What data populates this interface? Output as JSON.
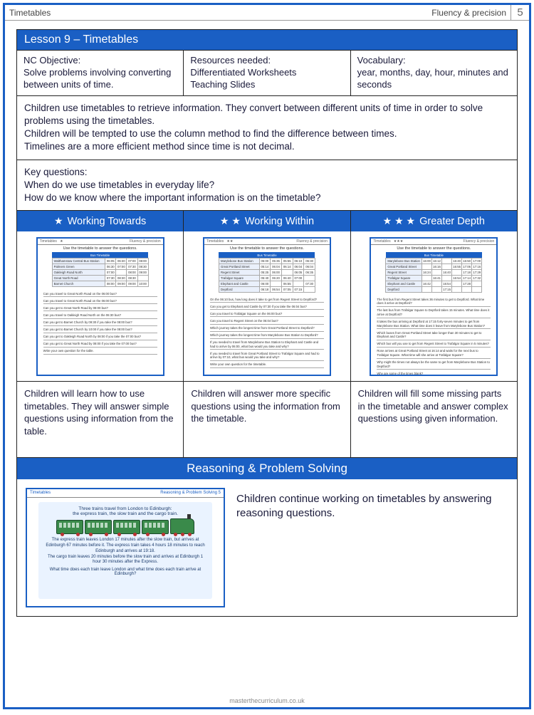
{
  "page": {
    "topic": "Timetables",
    "strand": "Fluency & precision",
    "number": "5"
  },
  "lesson": {
    "title": "Lesson 9 – Timetables",
    "objective_label": "NC Objective:",
    "objective": "Solve problems involving converting between units of time.",
    "resources_label": "Resources needed:",
    "resources": "Differentiated Worksheets\nTeaching Slides",
    "vocab_label": "Vocabulary:",
    "vocab": "year, months, day, hour, minutes and seconds"
  },
  "overview": "Children use timetables to retrieve information. They convert between different units of time in order to solve problems using the timetables.\nChildren will be tempted to use the column method to find the difference between times.\nTimelines are a more efficient method since time is not decimal.",
  "keyq_label": "Key questions:",
  "keyq": "When do we use timetables in everyday life?\nHow do we know where the important information is on the timetable?",
  "levels": {
    "wt": {
      "label": "Working Towards",
      "stars": 1,
      "desc": "Children will learn how to use timetables. They will answer simple questions using information from the table."
    },
    "ww": {
      "label": "Working Within",
      "stars": 2,
      "desc": "Children will answer more specific questions using the information from the timetable."
    },
    "gd": {
      "label": "Greater Depth",
      "stars": 3,
      "desc": "Children will fill some missing parts in the timetable and answer complex questions using given information."
    }
  },
  "thumbs": {
    "common_title": "Use the timetable to answer the questions.",
    "table_header": "Bus Timetable",
    "wt": {
      "rows": [
        [
          "Walthamstow Central Bus Station",
          "06:05",
          "06:30",
          "07:00",
          "08:00"
        ],
        [
          "Palmers Green",
          "06:30",
          "07:00",
          "07:30",
          "08:30"
        ],
        [
          "Oakleigh Road North",
          "07:00",
          "",
          "08:00",
          "09:00"
        ],
        [
          "Great North Road",
          "07:30",
          "08:30",
          "08:30",
          ""
        ],
        [
          "Barnet Church",
          "08:00",
          "09:00",
          "09:00",
          "10:00"
        ]
      ],
      "qs": [
        "Can you travel to Great North Road on the 06:00 bus?",
        "Can you travel to Great North Road on the 06:00 bus?",
        "Can you get to Great North Road by 08:00 bus?",
        "Can you travel to Oakleigh Road North on the 06:30 bus?",
        "Can you get to Barnet Church by 09:30 if you take the 08:00 bus?",
        "Can you get to Barnet Church by 10:00 if you take the 08:00 bus?",
        "Can you get to Oakleigh Road North by 08:00 if you take the 07:00 bus?",
        "Can you get to Great North Road by 08:00 if you take the 07:00 bus?",
        "Write your own question for the table."
      ]
    },
    "ww": {
      "rows": [
        [
          "Marylebone Bus Station",
          "05:00",
          "05:35",
          "05:55",
          "06:10",
          "06:30"
        ],
        [
          "Great Portland Street",
          "05:14",
          "06:04",
          "06:14",
          "06:04",
          "06:04"
        ],
        [
          "Regent Street",
          "05:25",
          "06:00",
          "",
          "06:05",
          "06:35"
        ],
        [
          "Trafalgar Square",
          "05:40",
          "06:20",
          "06:40",
          "07:00",
          ""
        ],
        [
          "Elephant and Castle",
          "06:00",
          "",
          "06:55",
          "",
          "07:30"
        ],
        [
          "Deptford",
          "06:18",
          "06:54",
          "07:05",
          "07:15",
          ""
        ]
      ],
      "qs": [
        "On the 06:10 bus, how long does it take to get from Regent Street to Deptford?",
        "Can you get to Elephant and Castle by 07:30 if you take the 06:04 bus?",
        "Can you travel to Trafalgar Square on the 06:00 bus?",
        "Can you travel to Regent Street on the 06:04 bus?",
        "Which journey takes the longest time from Great Portland Street to Deptford?",
        "Which journey takes the longest time from Marylebone Bus Station to Deptford?",
        "If you needed to travel from Marylebone Bus Station to Elephant and Castle and had to arrive by 06:00, what bus would you take and why?",
        "If you needed to travel from Great Portland Street to Trafalgar Square and had to arrive by 07:10, what bus would you take and why?",
        "Write your own question for the timetable."
      ]
    },
    "gd": {
      "rows": [
        [
          "Marylebone Bus Station",
          "16:00",
          "16:12",
          "",
          "16:40",
          "16:50",
          "17:00"
        ],
        [
          "Great Portland Street",
          "",
          "16:16",
          "",
          "16:55",
          "17:06",
          "17:16"
        ],
        [
          "Regent Street",
          "16:24",
          "",
          "16:40",
          "",
          "17:18",
          "17:29"
        ],
        [
          "Trafalgar Square",
          "",
          "16:41",
          "",
          "16:54",
          "17:14",
          "17:32",
          ""
        ],
        [
          "Elephant and Castle",
          "16:42",
          "",
          "16:54",
          "",
          "17:28",
          "",
          "17:50"
        ],
        [
          "Deptford",
          "",
          "",
          "17:15",
          "",
          "",
          "",
          ""
        ]
      ],
      "qs": [
        "The first bus from Regent Street takes 36 minutes to get to Deptford. What time does it arrive at Deptford?",
        "The last bus from Trafalgar Square to Deptford takes 15 minutes. What time does it arrive at Deptford?",
        "It takes the bus arriving at Deptford at 17:15 forty-seven minutes to get from Marylebone Bus Station. What time does it leave from Marylebone Bus Station?",
        "Which buses from Great Portland Street take longer than 30 minutes to get to Elephant and Castle?",
        "Which bus will you use to get from Regent Street to Trafalgar Square in 5 minutes?",
        "Rose arrives at Great Portland Street at 16:14 and waits for the next bus to Trafalgar Square. What time will she arrive at Trafalgar Square?",
        "Why might the times not always be the same to get from Marylebone Bus Station to Deptford?",
        "Why are some of the times blank?",
        "Write your own question for the timetable."
      ]
    }
  },
  "rps": {
    "heading": "Reasoning & Problem Solving",
    "text": "Children continue working on timetables by answering reasoning questions.",
    "thumb": {
      "top_left": "Timetables",
      "top_right": "Reasoning & Problem Solving    5",
      "line1": "Three trains travel from London to Edinburgh:",
      "line2": "the express train, the slow train and the cargo train.",
      "para": "The express train leaves London 17 minutes after the slow train, but arrives at Edinburgh 67 minutes before it. The express train takes 4 hours 18 minutes to reach Edinburgh and arrives at 19:18.\nThe cargo train leaves 20 minutes before the slow train and arrives at Edinburgh 1 hour 30 minutes after the Express.",
      "q": "What time does each train leave London and what time does each train arrive at Edinburgh?"
    }
  },
  "footer": "masterthecurriculum.co.uk"
}
